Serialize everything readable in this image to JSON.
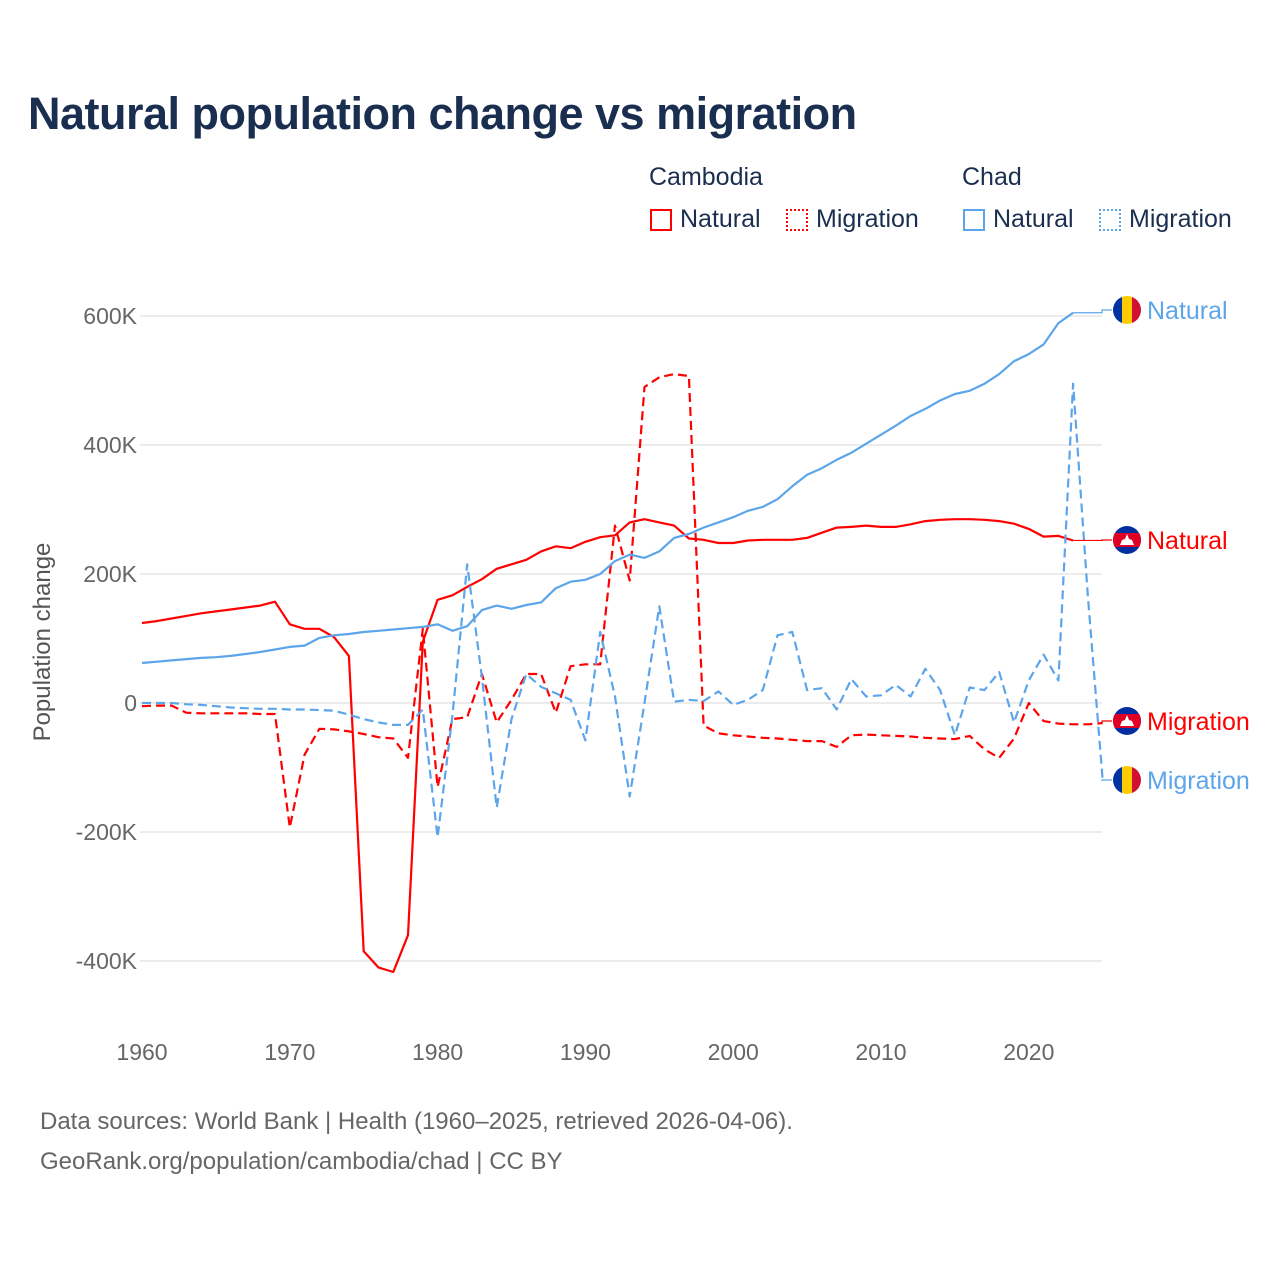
{
  "chart_data": {
    "type": "line",
    "title": "Natural population change vs migration",
    "ylabel": "Population change",
    "xlabel": "",
    "ylim": [
      -500000,
      650000
    ],
    "xlim": [
      1960,
      2025
    ],
    "y_ticks": [
      {
        "v": 600000,
        "label": "600K"
      },
      {
        "v": 400000,
        "label": "400K"
      },
      {
        "v": 200000,
        "label": "200K"
      },
      {
        "v": 0,
        "label": "0"
      },
      {
        "v": -200000,
        "label": "-200K"
      },
      {
        "v": -400000,
        "label": "-400K"
      }
    ],
    "x_ticks": [
      {
        "v": 1960,
        "label": "1960"
      },
      {
        "v": 1970,
        "label": "1970"
      },
      {
        "v": 1980,
        "label": "1980"
      },
      {
        "v": 1990,
        "label": "1990"
      },
      {
        "v": 2000,
        "label": "2000"
      },
      {
        "v": 2010,
        "label": "2010"
      },
      {
        "v": 2020,
        "label": "2020"
      }
    ],
    "grid": true,
    "legend": {
      "placement": "top-right",
      "groups": [
        {
          "country": "Cambodia",
          "items": [
            "Natural",
            "Migration"
          ]
        },
        {
          "country": "Chad",
          "items": [
            "Natural",
            "Migration"
          ]
        }
      ]
    },
    "series": [
      {
        "name": "Cambodia Natural",
        "country": "Cambodia",
        "kind": "Natural",
        "color": "#ff0000",
        "dashed": false,
        "start_year": 1960,
        "values_k": [
          124,
          127,
          131,
          135,
          139,
          142,
          145,
          148,
          151,
          157,
          122,
          115,
          115,
          102,
          73,
          -385,
          -410,
          -417,
          -360,
          95,
          160,
          167,
          180,
          192,
          208,
          215,
          222,
          235,
          243,
          240,
          250,
          257,
          260,
          280,
          285,
          280,
          275,
          255,
          253,
          248,
          248,
          252,
          253,
          253,
          253,
          256,
          264,
          272,
          273,
          275,
          273,
          273,
          277,
          282,
          284,
          285,
          285,
          284,
          282,
          278,
          270,
          258,
          259,
          252
        ]
      },
      {
        "name": "Cambodia Migration",
        "country": "Cambodia",
        "kind": "Migration",
        "color": "#ff0000",
        "dashed": true,
        "start_year": 1960,
        "values_k": [
          -5,
          -4,
          -4,
          -15,
          -16,
          -16,
          -16,
          -16,
          -17,
          -17,
          -193,
          -80,
          -40,
          -41,
          -44,
          -48,
          -53,
          -55,
          -85,
          115,
          -130,
          -25,
          -22,
          45,
          -30,
          5,
          45,
          45,
          -15,
          57,
          60,
          60,
          275,
          190,
          490,
          505,
          510,
          507,
          -35,
          -47,
          -50,
          -52,
          -54,
          -55,
          -57,
          -59,
          -59,
          -68,
          -50,
          -49,
          -50,
          -51,
          -52,
          -54,
          -55,
          -56,
          -51,
          -72,
          -85,
          -55,
          0,
          -28,
          -32,
          -33,
          -33,
          -31
        ]
      },
      {
        "name": "Chad Natural",
        "country": "Chad",
        "kind": "Natural",
        "color": "#5da5ea",
        "dashed": false,
        "start_year": 1960,
        "values_k": [
          62,
          64,
          66,
          68,
          70,
          71,
          73,
          76,
          79,
          83,
          87,
          89,
          101,
          105,
          107,
          110,
          112,
          114,
          116,
          118,
          122,
          112,
          119,
          144,
          151,
          146,
          152,
          156,
          178,
          188,
          191,
          200,
          220,
          230,
          225,
          235,
          256,
          262,
          272,
          280,
          288,
          298,
          304,
          316,
          336,
          354,
          364,
          377,
          388,
          402,
          416,
          430,
          445,
          456,
          469,
          479,
          484,
          495,
          510,
          530,
          541,
          556,
          589,
          605
        ]
      },
      {
        "name": "Chad Migration",
        "country": "Chad",
        "kind": "Migration",
        "color": "#5da5ea",
        "dashed": true,
        "start_year": 1960,
        "values_k": [
          0,
          0,
          0,
          -2,
          -3,
          -5,
          -7,
          -8,
          -9,
          -9,
          -10,
          -10,
          -11,
          -12,
          -18,
          -25,
          -30,
          -34,
          -34,
          -10,
          -208,
          -20,
          215,
          40,
          -162,
          -25,
          45,
          25,
          15,
          5,
          -58,
          110,
          10,
          -145,
          0,
          150,
          2,
          5,
          3,
          18,
          -3,
          5,
          20,
          105,
          110,
          20,
          23,
          -10,
          37,
          10,
          12,
          28,
          10,
          53,
          20,
          -50,
          24,
          20,
          48,
          -30,
          35,
          75,
          35,
          495,
          165,
          -120
        ]
      }
    ],
    "end_labels": [
      {
        "series": 2,
        "text": "Natural",
        "flag": "chad"
      },
      {
        "series": 0,
        "text": "Natural",
        "flag": "cambodia"
      },
      {
        "series": 1,
        "text": "Migration",
        "flag": "cambodia"
      },
      {
        "series": 3,
        "text": "Migration",
        "flag": "chad"
      }
    ]
  },
  "footer": {
    "source": "Data sources: World Bank | Health (1960–2025, retrieved 2026-04-06).",
    "credit": "GeoRank.org/population/cambodia/chad | CC BY"
  }
}
